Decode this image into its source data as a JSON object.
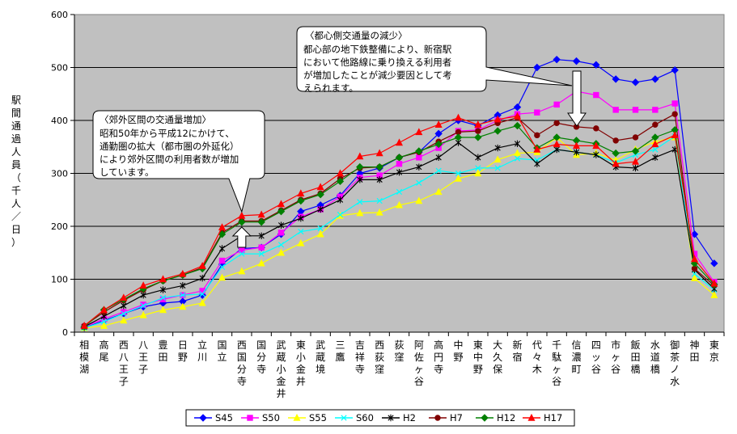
{
  "chart_data": {
    "type": "line",
    "ylabel": "駅間通過人員（千人／日）",
    "ylim": [
      0,
      600
    ],
    "yticks": [
      0,
      100,
      200,
      300,
      400,
      500,
      600
    ],
    "grid": true,
    "legend_position": "bottom",
    "categories": [
      "相模湖",
      "高尾",
      "西八王子",
      "八王子",
      "豊田",
      "日野",
      "立川",
      "国立",
      "西国分寺",
      "国分寺",
      "武蔵小金井",
      "東小金井",
      "武蔵境",
      "三鷹",
      "吉祥寺",
      "西荻窪",
      "荻窪",
      "阿佐ヶ谷",
      "高円寺",
      "中野",
      "東中野",
      "大久保",
      "新宿",
      "代々木",
      "千駄ヶ谷",
      "信濃町",
      "四ッ谷",
      "市ヶ谷",
      "飯田橋",
      "水道橋",
      "御茶ノ水",
      "神田",
      "東京"
    ],
    "series": [
      {
        "name": "S45",
        "color": "#0000ff",
        "marker": "diamond",
        "values": [
          8,
          22,
          35,
          48,
          55,
          58,
          70,
          128,
          158,
          160,
          185,
          228,
          240,
          258,
          300,
          310,
          330,
          340,
          375,
          400,
          390,
          410,
          425,
          500,
          515,
          512,
          505,
          478,
          472,
          478,
          495,
          185,
          130
        ]
      },
      {
        "name": "S50",
        "color": "#ff00ff",
        "marker": "square",
        "values": [
          10,
          25,
          38,
          52,
          62,
          70,
          78,
          135,
          155,
          160,
          188,
          218,
          232,
          256,
          292,
          296,
          318,
          330,
          348,
          380,
          382,
          400,
          412,
          415,
          430,
          455,
          448,
          420,
          420,
          420,
          432,
          148,
          95
        ]
      },
      {
        "name": "S55",
        "color": "#ffff00",
        "marker": "triangle",
        "values": [
          8,
          12,
          22,
          32,
          42,
          48,
          55,
          103,
          115,
          130,
          150,
          168,
          185,
          220,
          225,
          226,
          240,
          248,
          265,
          290,
          300,
          326,
          338,
          340,
          368,
          335,
          338,
          325,
          345,
          360,
          368,
          102,
          70
        ]
      },
      {
        "name": "S60",
        "color": "#00ffff",
        "marker": "x",
        "values": [
          8,
          20,
          35,
          50,
          65,
          70,
          72,
          123,
          148,
          148,
          165,
          190,
          196,
          222,
          246,
          248,
          265,
          282,
          305,
          300,
          310,
          310,
          328,
          325,
          345,
          340,
          335,
          320,
          335,
          345,
          370,
          110,
          80
        ]
      },
      {
        "name": "H2",
        "color": "#000000",
        "marker": "star",
        "values": [
          10,
          30,
          50,
          70,
          80,
          88,
          102,
          158,
          182,
          182,
          202,
          215,
          232,
          250,
          288,
          288,
          302,
          312,
          330,
          358,
          330,
          348,
          356,
          318,
          345,
          340,
          335,
          312,
          310,
          330,
          345,
          118,
          82
        ]
      },
      {
        "name": "H7",
        "color": "#800000",
        "marker": "circle",
        "values": [
          12,
          38,
          60,
          80,
          97,
          108,
          122,
          188,
          210,
          210,
          230,
          250,
          262,
          290,
          310,
          312,
          330,
          340,
          360,
          378,
          380,
          395,
          405,
          372,
          395,
          388,
          385,
          362,
          368,
          392,
          412,
          120,
          88
        ]
      },
      {
        "name": "H12",
        "color": "#008000",
        "marker": "diamond",
        "values": [
          10,
          42,
          62,
          82,
          97,
          108,
          120,
          185,
          208,
          208,
          228,
          248,
          260,
          285,
          312,
          312,
          330,
          342,
          355,
          368,
          368,
          380,
          390,
          348,
          368,
          362,
          356,
          338,
          342,
          368,
          382,
          130,
          90
        ]
      },
      {
        "name": "H17",
        "color": "#ff0000",
        "marker": "triangle",
        "values": [
          12,
          42,
          65,
          88,
          100,
          110,
          125,
          198,
          220,
          222,
          242,
          262,
          274,
          300,
          332,
          338,
          358,
          378,
          392,
          405,
          392,
          402,
          408,
          345,
          355,
          352,
          352,
          318,
          322,
          355,
          372,
          138,
          92
        ]
      }
    ],
    "annotations": [
      {
        "title": "〈郊外区間の交通量増加〉",
        "lines": [
          "昭和50年から平成12にかけて、",
          "通勤圏の拡大（都市圏の外延化）",
          "により郊外区間の利用者数が増加",
          "しています。"
        ]
      },
      {
        "title": "〈都心側交通量の減少〉",
        "lines": [
          "都心部の地下鉄整備により、新宿駅",
          "において他路線に乗り換える利用者",
          "が増加したことが減少要因として考",
          "えられます。"
        ]
      }
    ]
  }
}
